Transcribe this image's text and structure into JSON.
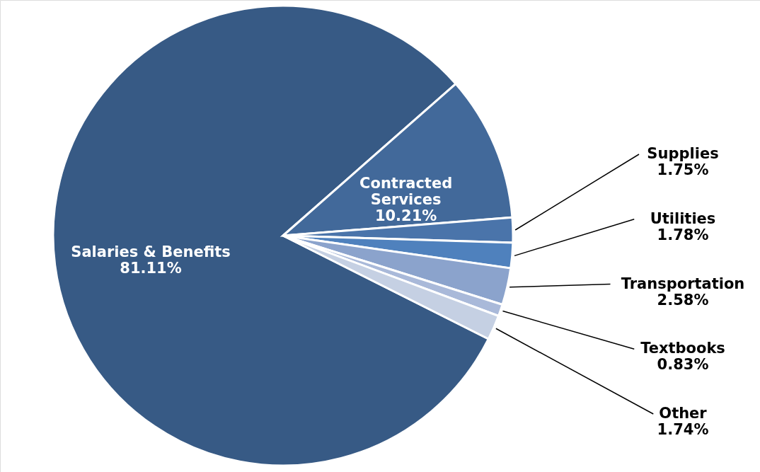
{
  "chart_data": {
    "type": "pie",
    "categories": [
      "Salaries & Benefits",
      "Contracted Services",
      "Supplies",
      "Utilities",
      "Transportation",
      "Textbooks",
      "Other"
    ],
    "values": [
      81.11,
      10.21,
      1.75,
      1.78,
      2.58,
      0.83,
      1.74
    ],
    "value_labels": [
      "81.11%",
      "10.21%",
      "1.75%",
      "1.78%",
      "2.58%",
      "0.83%",
      "1.74%"
    ],
    "colors": [
      "#375a85",
      "#42699a",
      "#4a74aa",
      "#4f81bd",
      "#8ba3cc",
      "#a9b9d9",
      "#c5d0e3"
    ]
  }
}
